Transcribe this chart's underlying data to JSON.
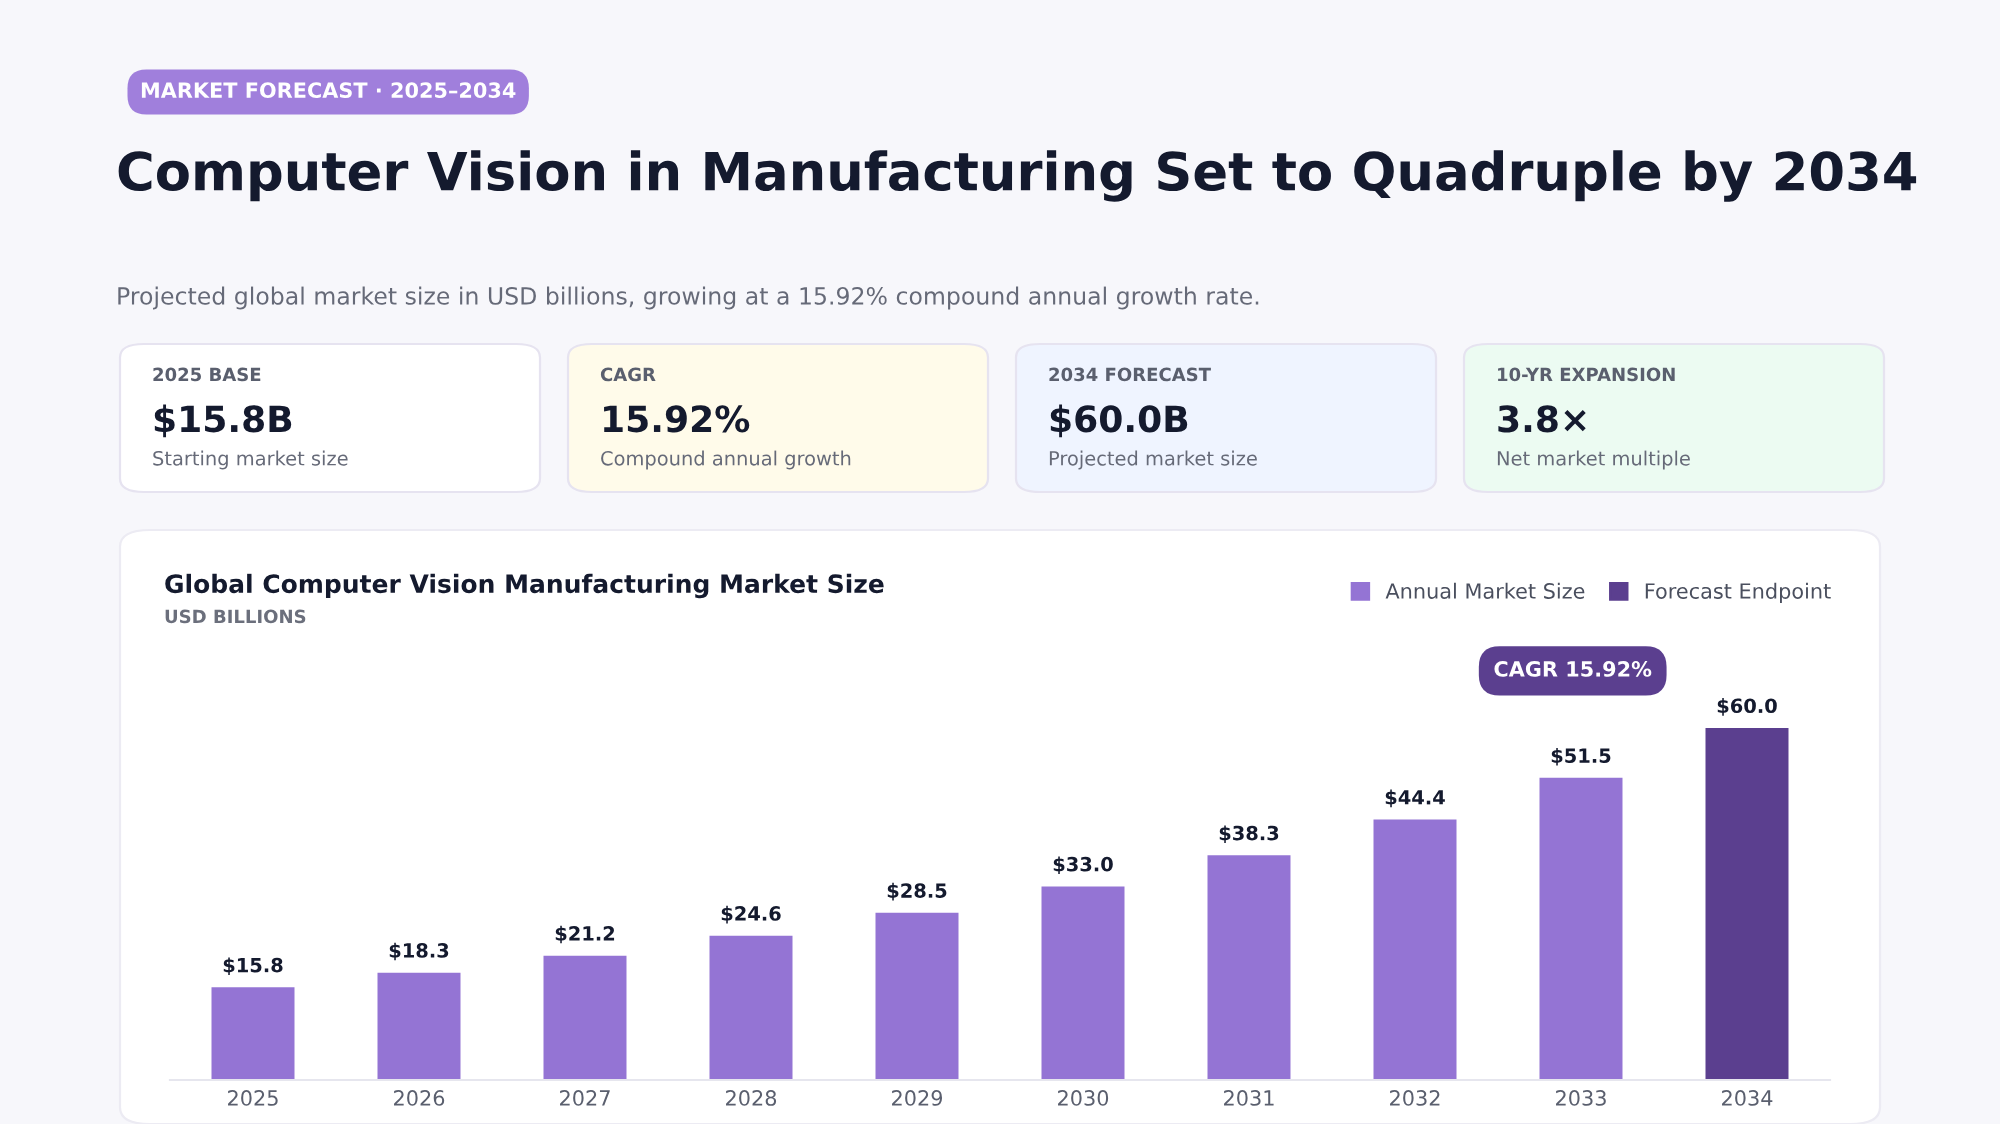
{
  "chart_data": {
    "type": "bar",
    "title": "Computer Vision in Manufacturing Set to Quadruple by 2034",
    "subtitle": "Projected global market size in USD billions, growing at a 15.92% compound annual growth rate.",
    "categories": [
      "2025",
      "2026",
      "2027",
      "2028",
      "2029",
      "2030",
      "2031",
      "2032",
      "2033",
      "2034"
    ],
    "series": [
      {
        "name": "Annual Market Size",
        "color": "#9474d4",
        "values": [
          15.8,
          18.3,
          21.2,
          24.6,
          28.5,
          33.0,
          38.3,
          44.4,
          51.5,
          null
        ],
        "value_labels": [
          "$15.8",
          "$18.3",
          "$21.2",
          "$24.6",
          "$28.5",
          "$33.0",
          "$38.3",
          "$44.4",
          "$51.5",
          null
        ]
      },
      {
        "name": "Forecast Endpoint",
        "color": "#5b3f8f",
        "values": [
          null,
          null,
          null,
          null,
          null,
          null,
          null,
          null,
          null,
          60.0
        ],
        "value_labels": [
          null,
          null,
          null,
          null,
          null,
          null,
          null,
          null,
          null,
          "$60.0"
        ]
      }
    ],
    "legend": "top right",
    "annotations": [
      "MARKET FORECAST · 2025–2034",
      "2025 BASE",
      "$15.8B",
      "Starting market size",
      "CAGR",
      "15.92%",
      "Compound annual growth",
      "2034 FORECAST",
      "$60.0B",
      "Projected market size",
      "10-YR EXPANSION",
      "3.8×",
      "Net market multiple",
      "Global Computer Vision Manufacturing Market Size",
      "USD BILLIONS",
      "CAGR 15.92%"
    ]
  }
}
